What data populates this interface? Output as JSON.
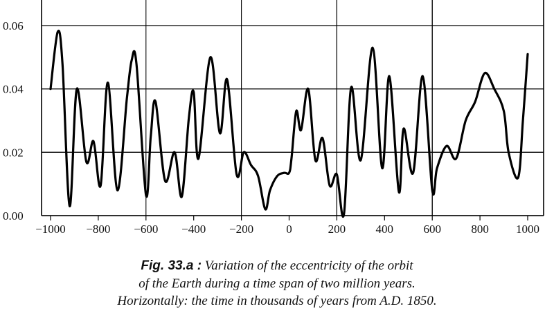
{
  "chart_data": {
    "type": "line",
    "title": "",
    "xlabel": "",
    "ylabel": "",
    "xlim": [
      -1050,
      1020
    ],
    "ylim": [
      0,
      0.066
    ],
    "grid": true,
    "x_ticks": [
      -1000,
      -800,
      -600,
      -400,
      -200,
      0,
      200,
      400,
      600,
      800,
      1000
    ],
    "x_tick_labels": [
      "−1000",
      "−800",
      "−600",
      "−400",
      "−200",
      "0",
      "200",
      "400",
      "600",
      "800",
      "1000"
    ],
    "y_ticks": [
      0.0,
      0.02,
      0.04,
      0.06
    ],
    "y_tick_labels": [
      "0.00",
      "0.02",
      "0.04",
      "0.06"
    ],
    "series": [
      {
        "name": "",
        "x": [
          -1000,
          -970,
          -950,
          -920,
          -890,
          -850,
          -820,
          -790,
          -760,
          -720,
          -680,
          -660,
          -640,
          -600,
          -580,
          -560,
          -520,
          -480,
          -450,
          -420,
          -400,
          -380,
          -330,
          -290,
          -260,
          -220,
          -190,
          -160,
          -130,
          -100,
          -80,
          -50,
          -20,
          0,
          10,
          30,
          50,
          80,
          110,
          140,
          170,
          200,
          230,
          260,
          300,
          350,
          390,
          420,
          460,
          480,
          520,
          560,
          600,
          620,
          660,
          700,
          740,
          780,
          820,
          860,
          900,
          920,
          960,
          980,
          1000
        ],
        "y": [
          0.04,
          0.058,
          0.048,
          0.003,
          0.04,
          0.017,
          0.0235,
          0.0095,
          0.042,
          0.008,
          0.037,
          0.049,
          0.048,
          0.0065,
          0.025,
          0.036,
          0.011,
          0.02,
          0.006,
          0.031,
          0.039,
          0.018,
          0.05,
          0.026,
          0.043,
          0.013,
          0.02,
          0.016,
          0.0125,
          0.002,
          0.008,
          0.0125,
          0.0135,
          0.0135,
          0.018,
          0.033,
          0.027,
          0.04,
          0.0175,
          0.0245,
          0.0095,
          0.013,
          0.0005,
          0.0405,
          0.0175,
          0.053,
          0.015,
          0.044,
          0.0075,
          0.0275,
          0.0135,
          0.044,
          0.008,
          0.015,
          0.022,
          0.018,
          0.03,
          0.036,
          0.045,
          0.04,
          0.033,
          0.02,
          0.012,
          0.03,
          0.051
        ]
      }
    ]
  },
  "caption": {
    "fig_label": "Fig. 33.a :",
    "line1": "Variation of the eccentricity of the orbit",
    "line2": "of the Earth during a time span of two million years.",
    "line3": "Horizontally: the time in thousands of years from A.D. 1850."
  }
}
